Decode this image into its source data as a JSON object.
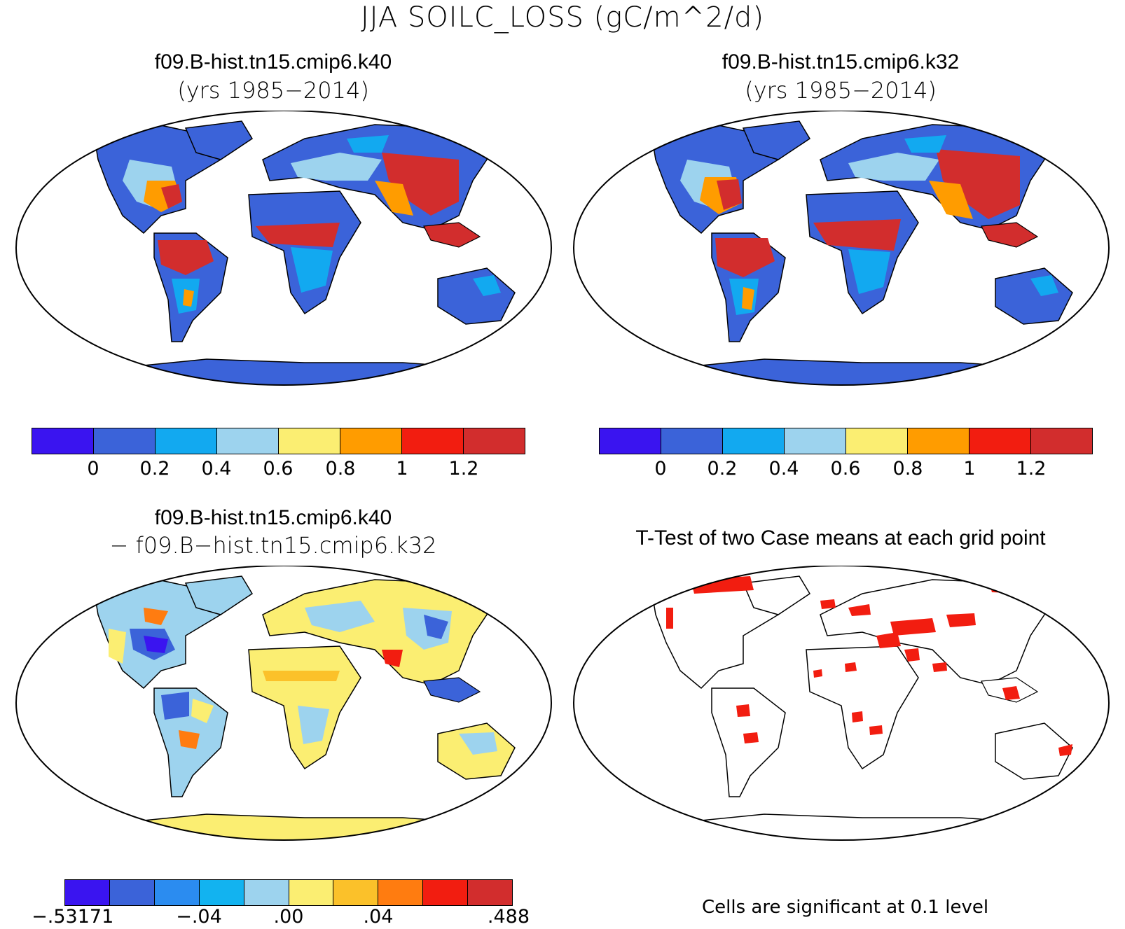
{
  "figure": {
    "title": "JJA SOILC_LOSS (gC/m^2/d)"
  },
  "panels": {
    "top_left": {
      "case": "f09.B-hist.tn15.cmip6.k40",
      "years": "(yrs 1985−2014)"
    },
    "top_right": {
      "case": "f09.B-hist.tn15.cmip6.k32",
      "years": "(yrs 1985−2014)"
    },
    "bottom_left": {
      "case_a": "f09.B-hist.tn15.cmip6.k40",
      "case_b": "− f09.B−hist.tn15.cmip6.k32"
    },
    "bottom_right": {
      "title": "T-Test of two Case means at each grid point",
      "footnote": "Cells are significant at 0.1 level"
    }
  },
  "colorbars": {
    "abs": {
      "colors": [
        "#3a14f0",
        "#3b63d9",
        "#12a9f0",
        "#9dd3ee",
        "#fbee72",
        "#ff9c00",
        "#f21d10",
        "#d22d2d"
      ],
      "labels": [
        "0",
        "0.2",
        "0.4",
        "0.6",
        "0.8",
        "1",
        "1.2"
      ]
    },
    "diff": {
      "colors": [
        "#3a14f0",
        "#3b63d9",
        "#2b8cf0",
        "#12b3f0",
        "#9dd3ee",
        "#fbee72",
        "#fbc12a",
        "#ff7c10",
        "#f21d10",
        "#d22d2d"
      ],
      "labels": [
        "−.53171",
        "−.04",
        ".00",
        ".04",
        ".488"
      ]
    }
  },
  "colors": {
    "map_frame": "#000000",
    "land_background": "#3b63d9",
    "diff_background": "#fbee72",
    "significant": "#f21d10"
  }
}
